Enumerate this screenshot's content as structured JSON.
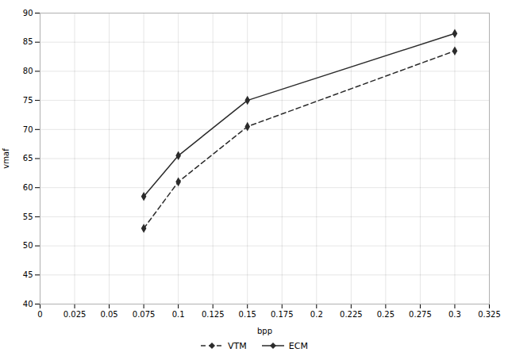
{
  "chart_data": {
    "type": "line",
    "xlabel": "bpp",
    "ylabel": "vmaf",
    "x": [
      0.075,
      0.1,
      0.15,
      0.3
    ],
    "series": [
      {
        "name": "VTM",
        "color": "#2b2b2b",
        "line_style": "dashed",
        "marker": "diamond",
        "values": [
          53.0,
          61.0,
          70.5,
          83.5
        ]
      },
      {
        "name": "ECM",
        "color": "#2b2b2b",
        "line_style": "solid",
        "marker": "diamond",
        "values": [
          58.5,
          65.5,
          75.0,
          86.5
        ]
      }
    ],
    "xlim": [
      0,
      0.325
    ],
    "ylim": [
      40,
      90
    ],
    "xticks": [
      0,
      0.025,
      0.05,
      0.075,
      0.1,
      0.125,
      0.15,
      0.175,
      0.2,
      0.225,
      0.25,
      0.275,
      0.3,
      0.325
    ],
    "yticks": [
      40,
      45,
      50,
      55,
      60,
      65,
      70,
      75,
      80,
      85,
      90
    ],
    "grid": true,
    "legend": "bottom"
  }
}
